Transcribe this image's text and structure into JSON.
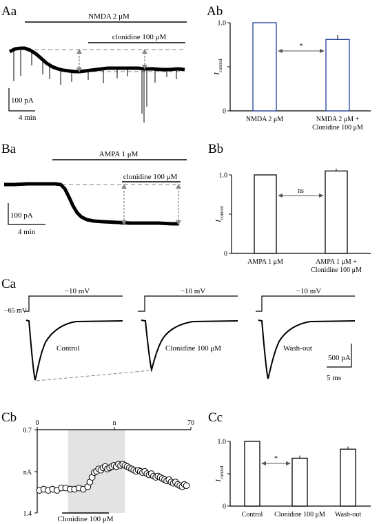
{
  "panels": {
    "Aa": {
      "label": "Aa",
      "drug_bar": "NMDA 2 μM",
      "sub_bar": "clonidine 100 μM",
      "scale_current": "100 pA",
      "scale_time": "4 min"
    },
    "Ba": {
      "label": "Ba",
      "drug_bar": "AMPA 1 μM",
      "sub_bar": "clonidine 100 μM",
      "scale_current": "100 pA",
      "scale_time": "4 min"
    },
    "Ca": {
      "label": "Ca",
      "holding_label": "−65 mV",
      "step_labels": [
        "−10 mV",
        "−10 mV",
        "−10 mV"
      ],
      "condition_labels": [
        "Control",
        "Clonidine 100 μM",
        "Wash-out"
      ],
      "scale_current": "500 pA",
      "scale_time": "5 ms"
    },
    "Cb": {
      "label": "Cb",
      "x_ticks": [
        "0",
        "n",
        "70"
      ],
      "y_ticks": [
        "0.7",
        "nA",
        "1.4"
      ],
      "shade_label": "Clonidine 100 μM",
      "shade_range": [
        14,
        40
      ]
    }
  },
  "chart_data": [
    {
      "id": "Ab",
      "label": "Ab",
      "type": "bar",
      "categories": [
        "NMDA 2 μM",
        "NMDA 2 μM +|Clonidine 100 μM"
      ],
      "values": [
        1.0,
        0.81
      ],
      "errors": [
        0,
        0.05
      ],
      "ylim": [
        0,
        1.0
      ],
      "yticks": [
        "0",
        "0.5",
        "1.0"
      ],
      "ylabel_main": "I",
      "ylabel_sub": "control",
      "significance": "*",
      "bar_color": "#1f3c99"
    },
    {
      "id": "Bb",
      "label": "Bb",
      "type": "bar",
      "categories": [
        "AMPA 1 μM",
        "AMPA 1 μM +|Clonidine 100 μM"
      ],
      "values": [
        1.0,
        1.05
      ],
      "errors": [
        0,
        0.03
      ],
      "ylim": [
        0,
        1.0
      ],
      "yticks": [
        "0",
        "0.5",
        "1.0"
      ],
      "ylabel_main": "I",
      "ylabel_sub": "control",
      "significance": "ns",
      "bar_color": "#000000"
    },
    {
      "id": "Cc",
      "label": "Cc",
      "type": "bar",
      "categories": [
        "Control",
        "Clonidine 100 μM",
        "Wash-out"
      ],
      "values": [
        1.0,
        0.74,
        0.88
      ],
      "errors": [
        0,
        0.04,
        0.04
      ],
      "ylim": [
        0,
        1.0
      ],
      "yticks": [
        "0",
        "0.5",
        "1.0"
      ],
      "ylabel_main": "I",
      "ylabel_sub": "control",
      "significance": "*",
      "bar_color": "#000000"
    },
    {
      "id": "Cb",
      "label": "Cb",
      "type": "scatter",
      "x": [
        1,
        3,
        5,
        7,
        9,
        11,
        13,
        15,
        17,
        19,
        21,
        23,
        24,
        25,
        26,
        27,
        28,
        29,
        30,
        31,
        32,
        33,
        34,
        35,
        36,
        37,
        38,
        39,
        40,
        41,
        42,
        43,
        44,
        45,
        46,
        47,
        48,
        49,
        50,
        51,
        52,
        53,
        54,
        55,
        56,
        57,
        58,
        59,
        60,
        61,
        62,
        63,
        64,
        65,
        66,
        67,
        68
      ],
      "y": [
        1.21,
        1.2,
        1.21,
        1.2,
        1.21,
        1.19,
        1.19,
        1.2,
        1.2,
        1.19,
        1.2,
        1.18,
        1.14,
        1.1,
        1.06,
        1.05,
        1.03,
        1.04,
        1.02,
        1.01,
        1.03,
        1.02,
        1.01,
        1.0,
        1.01,
        0.99,
        1.0,
        0.99,
        1.0,
        1.01,
        1.02,
        1.03,
        1.04,
        1.05,
        1.04,
        1.05,
        1.06,
        1.05,
        1.07,
        1.08,
        1.07,
        1.09,
        1.1,
        1.09,
        1.1,
        1.11,
        1.12,
        1.13,
        1.12,
        1.14,
        1.15,
        1.14,
        1.16,
        1.17,
        1.18,
        1.16,
        1.17
      ],
      "xlim": [
        0,
        70
      ],
      "ylim": [
        0.7,
        1.4
      ]
    }
  ]
}
